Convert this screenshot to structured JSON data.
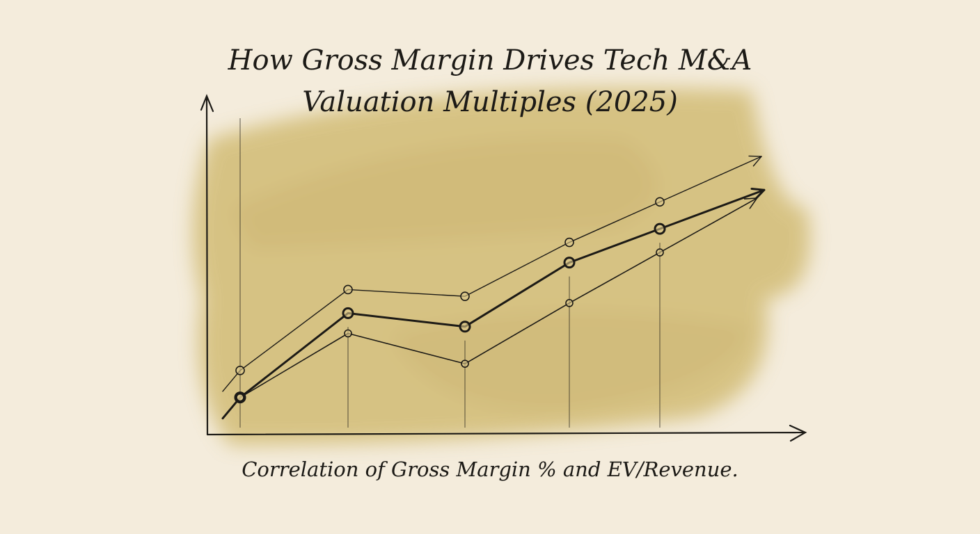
{
  "chart_data": {
    "type": "line",
    "title_lines": [
      "How Gross Margin Drives Tech M&A",
      "Valuation Multiples (2025)"
    ],
    "caption": "Correlation of Gross Margin % and EV/Revenue.",
    "xlabel": "",
    "ylabel": "",
    "x": [
      1,
      2,
      3,
      4,
      5
    ],
    "ylim": [
      0,
      10
    ],
    "grid": false,
    "legend": "none",
    "style": "hand-drawn sketch on watercolor wash",
    "series": [
      {
        "values": [
          1.1,
          3.6,
          3.2,
          5.1,
          6.1
        ],
        "trend_arrow": true
      },
      {
        "values": [
          1.9,
          4.3,
          4.1,
          5.7,
          6.9
        ],
        "trend_arrow": true
      },
      {
        "values": [
          1.1,
          3.0,
          2.1,
          3.9,
          5.4
        ],
        "trend_arrow": true
      }
    ],
    "colors": {
      "paper": "#f4ecdc",
      "wash": "#cdb566",
      "ink": "#1c1a16"
    }
  }
}
